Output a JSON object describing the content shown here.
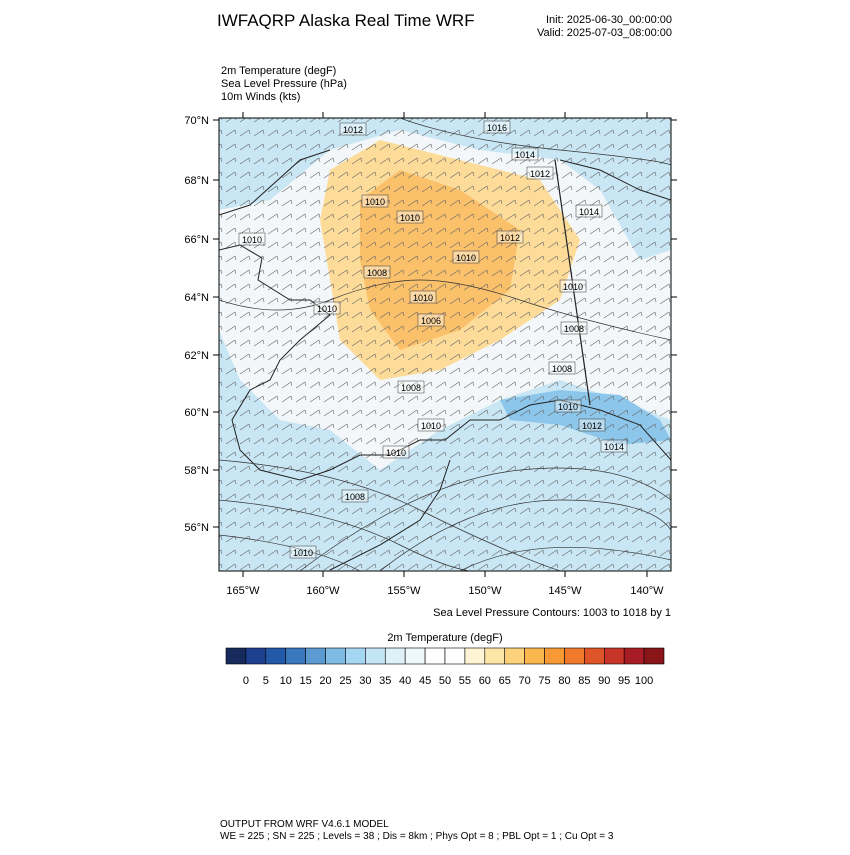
{
  "header": {
    "title": "IWFAQRP Alaska Real Time WRF",
    "init": "Init: 2025-06-30_00:00:00",
    "valid": "Valid: 2025-07-03_08:00:00"
  },
  "fields": [
    "2m Temperature   (degF)",
    "Sea Level Pressure   (hPa)",
    "10m Winds   (kts)"
  ],
  "map": {
    "lat_labels": [
      "70°N",
      "68°N",
      "66°N",
      "64°N",
      "62°N",
      "60°N",
      "58°N",
      "56°N"
    ],
    "lon_labels": [
      "165°W",
      "160°W",
      "155°W",
      "150°W",
      "145°W",
      "140°W"
    ],
    "contour_labels": [
      "1012",
      "1016",
      "1014",
      "1012",
      "1014",
      "1010",
      "1010",
      "1012",
      "1010",
      "1010",
      "1008",
      "1010",
      "1010",
      "1010",
      "1006",
      "1008",
      "1008",
      "1008",
      "1010",
      "1010",
      "1012",
      "1014",
      "1010",
      "1008",
      "1010"
    ],
    "contour_note": "Sea Level Pressure Contours: 1003 to 1018 by 1"
  },
  "colorbar": {
    "title": "2m Temperature  (degF)",
    "colors": [
      "#172a5c",
      "#1f3f8f",
      "#2459a9",
      "#3a79bd",
      "#5b9bd2",
      "#7fbbe4",
      "#a5d7f2",
      "#c2e5f5",
      "#dff1f8",
      "#eef7fa",
      "#ffffff",
      "#ffffff",
      "#fef3d2",
      "#fee6a8",
      "#fdd27b",
      "#fbb74e",
      "#f79a36",
      "#ef7a2b",
      "#e05528",
      "#c93428",
      "#a81d25",
      "#8a1519"
    ],
    "ticks": [
      0,
      5,
      10,
      15,
      20,
      25,
      30,
      35,
      40,
      45,
      50,
      55,
      60,
      65,
      70,
      75,
      80,
      85,
      90,
      95,
      100
    ]
  },
  "footer": {
    "model": "OUTPUT FROM WRF V4.6.1 MODEL",
    "settings": "WE = 225 ; SN = 225 ; Levels = 38 ; Dis = 8km ; Phys Opt = 8 ; PBL Opt = 1 ; Cu Opt = 3"
  }
}
